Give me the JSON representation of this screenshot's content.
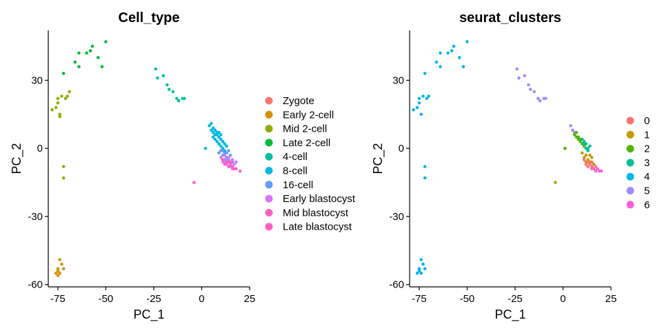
{
  "chart_data": [
    {
      "type": "scatter",
      "title": "Cell_type",
      "xlabel": "PC_1",
      "ylabel": "PC_2",
      "xlim": [
        -80,
        25
      ],
      "ylim": [
        -61,
        52
      ],
      "xticks": [
        -75,
        -50,
        -25,
        0,
        25
      ],
      "yticks": [
        -60,
        -30,
        0,
        30
      ],
      "xtick_labels": [
        "-75",
        "-50",
        "-25",
        "0",
        "25"
      ],
      "ytick_labels": [
        "-60",
        "-30",
        "0",
        "30"
      ],
      "legend_position": "right",
      "legend": [
        {
          "label": "Zygote",
          "color": "#F8766D"
        },
        {
          "label": "Early 2-cell",
          "color": "#D39200"
        },
        {
          "label": "Mid 2-cell",
          "color": "#93AA00"
        },
        {
          "label": "Late 2-cell",
          "color": "#00BA38"
        },
        {
          "label": "4-cell",
          "color": "#00C19F"
        },
        {
          "label": "8-cell",
          "color": "#00B9E3"
        },
        {
          "label": "16-cell",
          "color": "#619CFF"
        },
        {
          "label": "Early blastocyst",
          "color": "#DB72FB"
        },
        {
          "label": "Mid blastocyst",
          "color": "#FF61C3"
        },
        {
          "label": "Late blastocyst",
          "color": "#FF61C3"
        }
      ],
      "series": [
        {
          "name": "Early 2-cell",
          "color": "#D39200",
          "points": [
            [
              -76,
              -55
            ],
            [
              -75,
              -54
            ],
            [
              -75,
              -53
            ],
            [
              -74,
              -55
            ],
            [
              -74,
              -49
            ],
            [
              -73,
              -51
            ],
            [
              -72,
              -53
            ],
            [
              -75,
              -56
            ]
          ]
        },
        {
          "name": "Mid 2-cell",
          "color": "#93AA00",
          "points": [
            [
              -78,
              17
            ],
            [
              -76,
              18
            ],
            [
              -75,
              20
            ],
            [
              -75,
              22
            ],
            [
              -74,
              15
            ],
            [
              -73,
              23
            ],
            [
              -72,
              -8
            ],
            [
              -72,
              -13
            ],
            [
              -71,
              22
            ],
            [
              -70,
              23
            ],
            [
              -69,
              25
            ],
            [
              -74,
              14
            ]
          ]
        },
        {
          "name": "Late 2-cell",
          "color": "#00BA38",
          "points": [
            [
              -72,
              33
            ],
            [
              -66,
              38
            ],
            [
              -64,
              42
            ],
            [
              -64,
              36
            ],
            [
              -60,
              42
            ],
            [
              -58,
              43
            ],
            [
              -57,
              45
            ],
            [
              -54,
              40
            ],
            [
              -52,
              36
            ],
            [
              -50,
              47
            ]
          ]
        },
        {
          "name": "4-cell",
          "color": "#00C19F",
          "points": [
            [
              -24,
              35
            ],
            [
              -23,
              31
            ],
            [
              -20,
              32
            ],
            [
              -18,
              28
            ],
            [
              -17,
              26
            ],
            [
              -15,
              25
            ],
            [
              -13,
              22
            ],
            [
              -12,
              21
            ],
            [
              -10,
              22
            ],
            [
              -9,
              22
            ]
          ]
        },
        {
          "name": "8-cell",
          "color": "#00B9E3",
          "points": [
            [
              2,
              0
            ],
            [
              4,
              10
            ],
            [
              5,
              8
            ],
            [
              6,
              7
            ],
            [
              6,
              5
            ],
            [
              7,
              8
            ],
            [
              7,
              4
            ],
            [
              8,
              6
            ],
            [
              8,
              3
            ],
            [
              9,
              5
            ],
            [
              9,
              2
            ],
            [
              10,
              4
            ],
            [
              10,
              1
            ],
            [
              11,
              3
            ],
            [
              11,
              0
            ],
            [
              12,
              2
            ],
            [
              12,
              -1
            ],
            [
              13,
              1
            ],
            [
              5,
              11
            ],
            [
              6,
              9
            ],
            [
              8,
              7
            ],
            [
              7,
              6
            ],
            [
              9,
              7
            ],
            [
              10,
              6
            ]
          ]
        },
        {
          "name": "16-cell",
          "color": "#619CFF",
          "points": [
            [
              9,
              -2
            ],
            [
              10,
              -1
            ],
            [
              11,
              -3
            ],
            [
              12,
              -2
            ],
            [
              13,
              -4
            ],
            [
              14,
              -1
            ],
            [
              14,
              -5
            ],
            [
              15,
              -3
            ],
            [
              16,
              -6
            ],
            [
              13,
              -2
            ],
            [
              12,
              -5
            ],
            [
              11,
              -1
            ]
          ]
        },
        {
          "name": "Early blastocyst",
          "color": "#DB72FB",
          "points": [
            [
              10,
              -4
            ],
            [
              11,
              -6
            ],
            [
              12,
              -3
            ],
            [
              13,
              -7
            ],
            [
              14,
              -4
            ],
            [
              15,
              -8
            ],
            [
              16,
              -5
            ],
            [
              17,
              -7
            ],
            [
              18,
              -6
            ],
            [
              16,
              -9
            ],
            [
              12,
              -6
            ],
            [
              13,
              -5
            ]
          ]
        },
        {
          "name": "Mid blastocyst",
          "color": "#FF61C3",
          "points": [
            [
              -4,
              -15
            ],
            [
              11,
              -5
            ],
            [
              12,
              -7
            ],
            [
              13,
              -6
            ],
            [
              14,
              -8
            ],
            [
              15,
              -6
            ],
            [
              16,
              -8
            ],
            [
              17,
              -9
            ],
            [
              18,
              -9
            ],
            [
              20,
              -10
            ],
            [
              15,
              -7
            ],
            [
              14,
              -6
            ]
          ]
        }
      ]
    },
    {
      "type": "scatter",
      "title": "seurat_clusters",
      "xlabel": "PC_1",
      "ylabel": "PC_2",
      "xlim": [
        -80,
        25
      ],
      "ylim": [
        -61,
        52
      ],
      "xticks": [
        -75,
        -50,
        -25,
        0,
        25
      ],
      "yticks": [
        -60,
        -30,
        0,
        30
      ],
      "xtick_labels": [
        "-75",
        "-50",
        "-25",
        "0",
        "25"
      ],
      "ytick_labels": [
        "-60",
        "-30",
        "0",
        "30"
      ],
      "legend_position": "right",
      "legend": [
        {
          "label": "0",
          "color": "#F8766D"
        },
        {
          "label": "1",
          "color": "#C49A00"
        },
        {
          "label": "2",
          "color": "#53B400"
        },
        {
          "label": "3",
          "color": "#00C094"
        },
        {
          "label": "4",
          "color": "#00B6EB"
        },
        {
          "label": "5",
          "color": "#A58AFF"
        },
        {
          "label": "6",
          "color": "#FB61D7"
        }
      ],
      "series": [
        {
          "name": "4",
          "color": "#00B6EB",
          "points": [
            [
              -78,
              17
            ],
            [
              -76,
              18
            ],
            [
              -75,
              20
            ],
            [
              -75,
              22
            ],
            [
              -74,
              15
            ],
            [
              -73,
              23
            ],
            [
              -72,
              -8
            ],
            [
              -72,
              -13
            ],
            [
              -71,
              22
            ],
            [
              -70,
              23
            ],
            [
              -72,
              33
            ],
            [
              -66,
              38
            ],
            [
              -64,
              42
            ],
            [
              -64,
              36
            ],
            [
              -60,
              42
            ],
            [
              -58,
              43
            ],
            [
              -57,
              45
            ],
            [
              -54,
              40
            ],
            [
              -52,
              36
            ],
            [
              -50,
              47
            ],
            [
              -76,
              -55
            ],
            [
              -75,
              -54
            ],
            [
              -75,
              -53
            ],
            [
              -74,
              -55
            ],
            [
              -74,
              -49
            ],
            [
              -73,
              -51
            ],
            [
              -72,
              -53
            ]
          ]
        },
        {
          "name": "5",
          "color": "#A58AFF",
          "points": [
            [
              -24,
              35
            ],
            [
              -23,
              31
            ],
            [
              -20,
              32
            ],
            [
              -18,
              28
            ],
            [
              -17,
              26
            ],
            [
              -15,
              25
            ],
            [
              -13,
              22
            ],
            [
              -12,
              21
            ],
            [
              -10,
              22
            ],
            [
              -9,
              22
            ],
            [
              4,
              10
            ],
            [
              5,
              8
            ],
            [
              6,
              7
            ]
          ]
        },
        {
          "name": "2",
          "color": "#53B400",
          "points": [
            [
              1,
              0
            ],
            [
              6,
              6
            ],
            [
              7,
              5
            ],
            [
              8,
              4
            ],
            [
              9,
              3
            ],
            [
              10,
              2
            ],
            [
              7,
              7
            ],
            [
              8,
              5
            ],
            [
              9,
              4
            ],
            [
              11,
              1
            ]
          ]
        },
        {
          "name": "3",
          "color": "#00C094",
          "points": [
            [
              10,
              4
            ],
            [
              11,
              2
            ],
            [
              12,
              0
            ],
            [
              12,
              2
            ],
            [
              13,
              -1
            ],
            [
              14,
              1
            ],
            [
              13,
              0
            ],
            [
              11,
              3
            ]
          ]
        },
        {
          "name": "1",
          "color": "#C49A00",
          "points": [
            [
              -4,
              -15
            ],
            [
              10,
              -2
            ],
            [
              11,
              -4
            ],
            [
              12,
              -3
            ],
            [
              13,
              -5
            ],
            [
              14,
              -6
            ],
            [
              15,
              -4
            ],
            [
              16,
              -7
            ],
            [
              12,
              -6
            ],
            [
              14,
              -3
            ]
          ]
        },
        {
          "name": "0",
          "color": "#F8766D",
          "points": [
            [
              11,
              -5
            ],
            [
              12,
              -7
            ],
            [
              13,
              -8
            ],
            [
              14,
              -7
            ],
            [
              15,
              -8
            ],
            [
              16,
              -9
            ],
            [
              13,
              -6
            ],
            [
              15,
              -6
            ]
          ]
        },
        {
          "name": "6",
          "color": "#FB61D7",
          "points": [
            [
              15,
              -9
            ],
            [
              17,
              -8
            ],
            [
              18,
              -9
            ],
            [
              19,
              -10
            ],
            [
              20,
              -10
            ],
            [
              17,
              -10
            ]
          ]
        }
      ]
    }
  ]
}
